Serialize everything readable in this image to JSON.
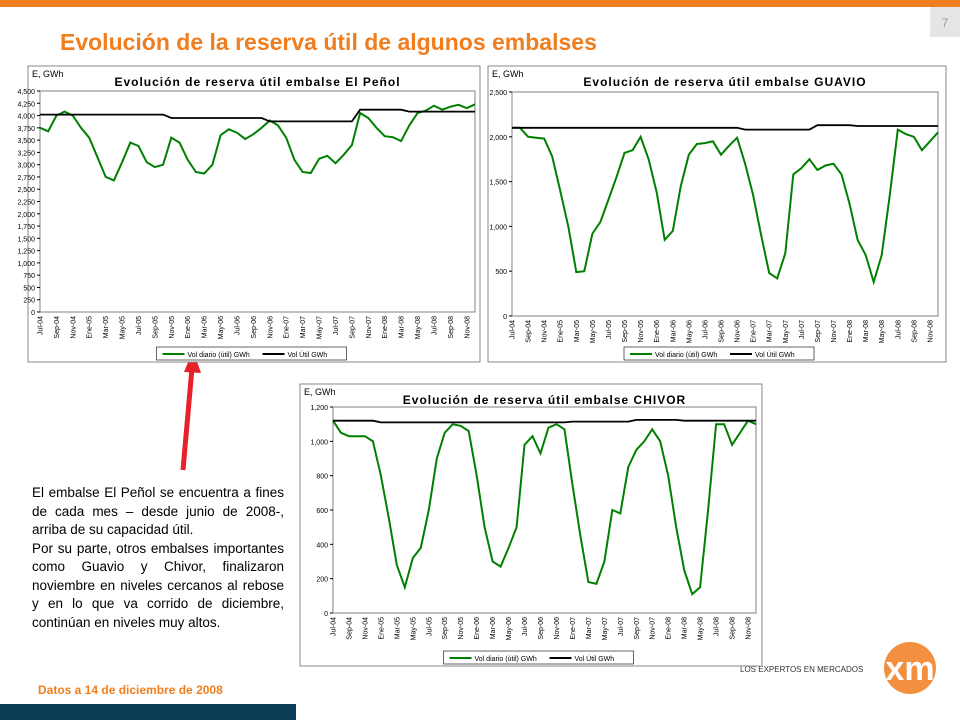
{
  "slide": {
    "title": "Evolución de la reserva útil de algunos embalses",
    "page": "7",
    "paragraphs": [
      "El embalse El Peñol se encuentra a fines de cada mes – desde junio de 2008-, arriba de su capacidad útil.",
      "Por su parte, otros embalses importantes como Guavio y Chivor, finalizaron noviembre en niveles cercanos al rebose y en lo que va corrido de diciembre, continúan en niveles muy altos."
    ],
    "footnote": "Datos a 14 de diciembre de 2008",
    "logo_tagline": "LOS EXPERTOS EN MERCADOS",
    "logo_name": "xm"
  },
  "chart_data": [
    {
      "type": "line",
      "title": "Evolución de reserva útil embalse El Peñol",
      "y_label": "E, GWh",
      "categories": [
        "Jul-04",
        null,
        "Sep-04",
        null,
        "Nov-04",
        null,
        "Ene-05",
        null,
        "Mar-05",
        null,
        "May-05",
        null,
        "Jul-05",
        null,
        "Sep-05",
        null,
        "Nov-05",
        null,
        "Ene-06",
        null,
        "Mar-06",
        null,
        "May-06",
        null,
        "Jul-06",
        null,
        "Sep-06",
        null,
        "Nov-06",
        null,
        "Ene-07",
        null,
        "Mar-07",
        null,
        "May-07",
        null,
        "Jul-07",
        null,
        "Sep-07",
        null,
        "Nov-07",
        null,
        "Ene-08",
        null,
        "Mar-08",
        null,
        "May-08",
        null,
        "Jul-08",
        null,
        "Sep-08",
        null,
        "Nov-08",
        null
      ],
      "series": [
        {
          "name": "Vol diario (útil) GWh",
          "color": "#008000",
          "values": [
            3750,
            3680,
            4000,
            4080,
            4000,
            3750,
            3550,
            3150,
            2750,
            2680,
            3050,
            3450,
            3380,
            3050,
            2950,
            3000,
            3550,
            3450,
            3100,
            2850,
            2820,
            3000,
            3600,
            3720,
            3650,
            3520,
            3620,
            3750,
            3900,
            3800,
            3550,
            3100,
            2850,
            2830,
            3120,
            3180,
            3030,
            3200,
            3400,
            4050,
            3950,
            3750,
            3580,
            3560,
            3480,
            3800,
            4050,
            4100,
            4200,
            4120,
            4180,
            4220,
            4150,
            4230
          ]
        },
        {
          "name": "Vol Útil GWh",
          "color": "#000000",
          "values": [
            4020,
            4020,
            4020,
            4020,
            4020,
            4020,
            4020,
            4020,
            4020,
            4020,
            4020,
            4020,
            4020,
            4020,
            4020,
            4020,
            3950,
            3950,
            3950,
            3950,
            3950,
            3950,
            3950,
            3950,
            3950,
            3950,
            3950,
            3950,
            3880,
            3880,
            3880,
            3880,
            3880,
            3880,
            3880,
            3880,
            3880,
            3880,
            3880,
            4120,
            4120,
            4120,
            4120,
            4120,
            4120,
            4080,
            4080,
            4080,
            4080,
            4080,
            4080,
            4080,
            4080,
            4080
          ]
        }
      ],
      "ylim": [
        0,
        4500
      ],
      "yticks": [
        0,
        {
          "value": 250,
          "label": "250"
        },
        {
          "value": 500,
          "label": "500"
        },
        {
          "value": 750,
          "label": "750"
        },
        {
          "value": 1000,
          "label": "1,000"
        },
        {
          "value": 1250,
          "label": "1,250"
        },
        {
          "value": 1500,
          "label": "1,500"
        },
        {
          "value": 1750,
          "label": "1,750"
        },
        {
          "value": 2000,
          "label": "2,000"
        },
        {
          "value": 2250,
          "label": "2,250"
        },
        {
          "value": 2500,
          "label": "2,500"
        },
        {
          "value": 2750,
          "label": "2,750"
        },
        {
          "value": 3000,
          "label": "3,000"
        },
        {
          "value": 3250,
          "label": "3,250"
        },
        {
          "value": 3500,
          "label": "3,500"
        },
        {
          "value": 3750,
          "label": "3,750"
        },
        {
          "value": 4000,
          "label": "4,000"
        },
        {
          "value": 4250,
          "label": "4,250"
        },
        {
          "value": 4500,
          "label": "4,500"
        }
      ]
    },
    {
      "type": "line",
      "title": "Evolución de reserva útil embalse GUAVIO",
      "y_label": "E, GWh",
      "categories": [
        "Jul-04",
        null,
        "Sep-04",
        null,
        "Nov-04",
        null,
        "Ene-05",
        null,
        "Mar-05",
        null,
        "May-05",
        null,
        "Jul-05",
        null,
        "Sep-05",
        null,
        "Nov-05",
        null,
        "Ene-06",
        null,
        "Mar-06",
        null,
        "May-06",
        null,
        "Jul-06",
        null,
        "Sep-06",
        null,
        "Nov-06",
        null,
        "Ene-07",
        null,
        "Mar-07",
        null,
        "May-07",
        null,
        "Jul-07",
        null,
        "Sep-07",
        null,
        "Nov-07",
        null,
        "Ene-08",
        null,
        "Mar-08",
        null,
        "May-08",
        null,
        "Jul-08",
        null,
        "Sep-08",
        null,
        "Nov-08",
        null
      ],
      "series": [
        {
          "name": "Vol diario (útil) GWh",
          "color": "#008000",
          "values": [
            2100,
            2100,
            2000,
            1990,
            1980,
            1780,
            1400,
            1000,
            490,
            500,
            920,
            1050,
            1300,
            1550,
            1820,
            1850,
            2000,
            1750,
            1380,
            850,
            950,
            1450,
            1800,
            1920,
            1930,
            1950,
            1800,
            1900,
            1990,
            1700,
            1350,
            900,
            480,
            420,
            700,
            1580,
            1650,
            1750,
            1630,
            1680,
            1700,
            1580,
            1250,
            850,
            680,
            380,
            680,
            1350,
            2080,
            2030,
            2000,
            1850,
            1950,
            2050
          ]
        },
        {
          "name": "Vol Útil GWh",
          "color": "#000000",
          "values": [
            2100,
            2100,
            2100,
            2100,
            2100,
            2100,
            2100,
            2100,
            2100,
            2100,
            2100,
            2100,
            2100,
            2100,
            2100,
            2100,
            2100,
            2100,
            2100,
            2100,
            2100,
            2100,
            2100,
            2100,
            2100,
            2100,
            2100,
            2100,
            2100,
            2080,
            2080,
            2080,
            2080,
            2080,
            2080,
            2080,
            2080,
            2080,
            2130,
            2130,
            2130,
            2130,
            2130,
            2120,
            2120,
            2120,
            2120,
            2120,
            2120,
            2120,
            2120,
            2120,
            2120,
            2120
          ]
        }
      ],
      "ylim": [
        0,
        2500
      ],
      "yticks": [
        0,
        500,
        {
          "value": 1000,
          "label": "1,000"
        },
        {
          "value": 1500,
          "label": "1,500"
        },
        {
          "value": 2000,
          "label": "2,000"
        },
        {
          "value": 2500,
          "label": "2,500"
        }
      ]
    },
    {
      "type": "line",
      "title": "Evolución de reserva útil embalse CHIVOR",
      "y_label": "E, GWh",
      "categories": [
        "Jul-04",
        null,
        "Sep-04",
        null,
        "Nov-04",
        null,
        "Ene-05",
        null,
        "Mar-05",
        null,
        "May-05",
        null,
        "Jul-05",
        null,
        "Sep-05",
        null,
        "Nov-05",
        null,
        "Ene-06",
        null,
        "Mar-06",
        null,
        "May-06",
        null,
        "Jul-06",
        null,
        "Sep-06",
        null,
        "Nov-06",
        null,
        "Ene-07",
        null,
        "Mar-07",
        null,
        "May-07",
        null,
        "Jul-07",
        null,
        "Sep-07",
        null,
        "Nov-07",
        null,
        "Ene-08",
        null,
        "Mar-08",
        null,
        "May-08",
        null,
        "Jul-08",
        null,
        "Sep-08",
        null,
        "Nov-08",
        null
      ],
      "series": [
        {
          "name": "Vol diario (útil) GWh",
          "color": "#008000",
          "values": [
            1120,
            1050,
            1030,
            1030,
            1030,
            1000,
            800,
            550,
            280,
            150,
            320,
            380,
            600,
            900,
            1050,
            1100,
            1090,
            1060,
            800,
            500,
            300,
            270,
            380,
            500,
            980,
            1030,
            930,
            1080,
            1100,
            1070,
            750,
            450,
            180,
            170,
            300,
            600,
            580,
            850,
            950,
            1000,
            1070,
            1000,
            800,
            500,
            250,
            110,
            150,
            600,
            1100,
            1100,
            980,
            1050,
            1120,
            1100
          ]
        },
        {
          "name": "Vol Útil GWh",
          "color": "#000000",
          "values": [
            1120,
            1120,
            1120,
            1120,
            1120,
            1120,
            1110,
            1110,
            1110,
            1110,
            1110,
            1110,
            1110,
            1110,
            1110,
            1110,
            1110,
            1110,
            1110,
            1110,
            1110,
            1110,
            1110,
            1110,
            1110,
            1110,
            1110,
            1110,
            1110,
            1110,
            1115,
            1115,
            1115,
            1115,
            1115,
            1115,
            1115,
            1115,
            1125,
            1125,
            1125,
            1125,
            1125,
            1125,
            1120,
            1120,
            1120,
            1120,
            1120,
            1120,
            1120,
            1120,
            1120,
            1120
          ]
        }
      ],
      "ylim": [
        0,
        1200
      ],
      "yticks": [
        0,
        200,
        400,
        600,
        800,
        {
          "value": 1000,
          "label": "1,000"
        },
        {
          "value": 1200,
          "label": "1,200"
        }
      ]
    }
  ]
}
